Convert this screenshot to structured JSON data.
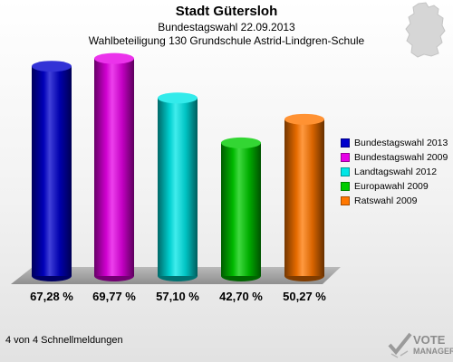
{
  "header": {
    "title": "Stadt Gütersloh",
    "subtitle": "Bundestagswahl 22.09.2013",
    "subtitle2": "Wahlbeteiligung 130 Grundschule Astrid-Lindgren-Schule"
  },
  "chart_data": {
    "type": "bar",
    "categories": [
      "Bundestagswahl 2013",
      "Bundestagswahl 2009",
      "Landtagswahl 2012",
      "Europawahl 2009",
      "Ratswahl 2009"
    ],
    "values": [
      67.28,
      69.77,
      57.1,
      42.7,
      50.27
    ],
    "value_labels": [
      "67,28 %",
      "69,77 %",
      "57,10 %",
      "42,70 %",
      "50,27 %"
    ],
    "colors": [
      "#0000cc",
      "#e600e6",
      "#00e6e6",
      "#00cc00",
      "#ff7700"
    ],
    "legend_position": "right",
    "grid": false
  },
  "legend": {
    "items": [
      {
        "label": "Bundestagswahl 2013",
        "color": "#0000cc"
      },
      {
        "label": "Bundestagswahl 2009",
        "color": "#e600e6"
      },
      {
        "label": "Landtagswahl 2012",
        "color": "#00e6e6"
      },
      {
        "label": "Europawahl 2009",
        "color": "#00cc00"
      },
      {
        "label": "Ratswahl 2009",
        "color": "#ff7700"
      }
    ]
  },
  "footer": {
    "text": "4 von 4 Schnellmeldungen"
  },
  "logo": {
    "line1": "VOTE",
    "line2": "MANAGER"
  }
}
